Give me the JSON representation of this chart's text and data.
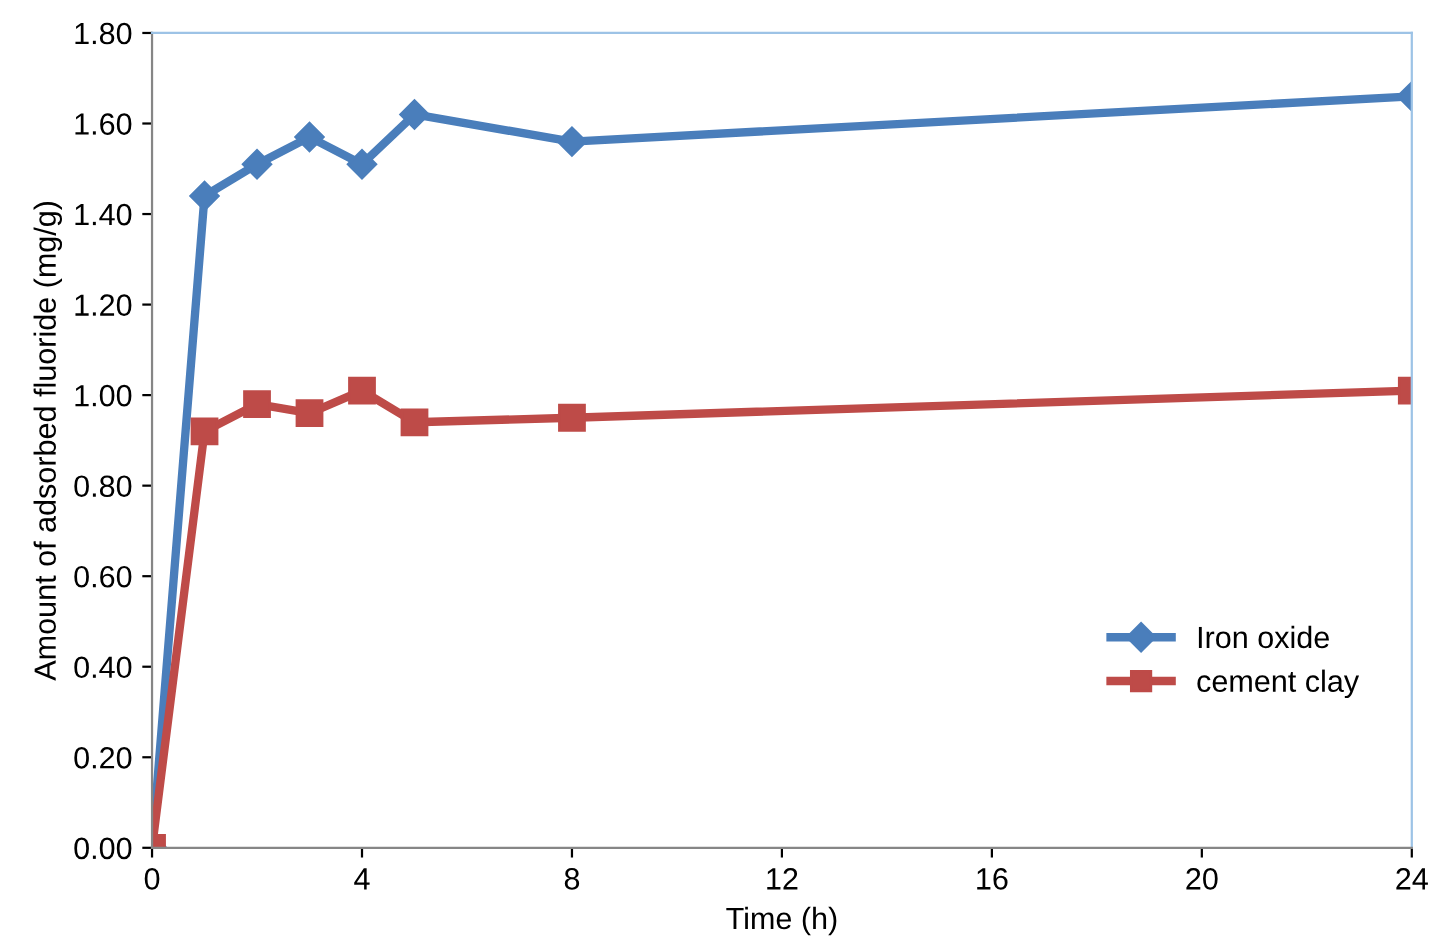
{
  "chart_data": {
    "type": "line",
    "xlabel": "Time (h)",
    "ylabel": "Amount of adsorbed fluoride (mg/g)",
    "x": [
      0,
      1,
      2,
      3,
      4,
      5,
      8,
      24
    ],
    "series": [
      {
        "name": "Iron oxide",
        "color": "#4a7ebb",
        "marker": "diamond",
        "values": [
          0,
          1.44,
          1.51,
          1.57,
          1.51,
          1.62,
          1.56,
          1.66
        ]
      },
      {
        "name": "cement clay",
        "color": "#be4b48",
        "marker": "square",
        "values": [
          0,
          0.92,
          0.98,
          0.96,
          1.01,
          0.94,
          0.95,
          1.01
        ]
      }
    ],
    "xlim": [
      0,
      24
    ],
    "xticks": [
      0,
      4,
      8,
      12,
      16,
      20,
      24
    ],
    "ylim": [
      0,
      1.8
    ],
    "yticks": [
      {
        "value": 0,
        "label": "0.00"
      },
      {
        "value": 0.2,
        "label": "0.20"
      },
      {
        "value": 0.4,
        "label": "0.40"
      },
      {
        "value": 0.6,
        "label": "0.60"
      },
      {
        "value": 0.8,
        "label": "0.80"
      },
      {
        "value": 1.0,
        "label": "1.00"
      },
      {
        "value": 1.2,
        "label": "1.20"
      },
      {
        "value": 1.4,
        "label": "1.40"
      },
      {
        "value": 1.6,
        "label": "1.60"
      },
      {
        "value": 1.8,
        "label": "1.80"
      }
    ],
    "grid": false,
    "legend": "bottom right",
    "line_style": "solid"
  }
}
